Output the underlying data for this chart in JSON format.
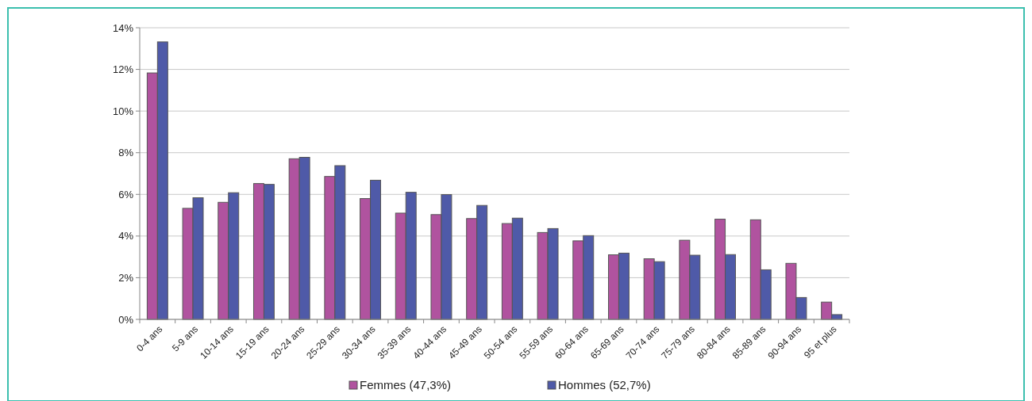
{
  "chart_data": {
    "type": "bar",
    "categories": [
      "0-4 ans",
      "5-9 ans",
      "10-14 ans",
      "15-19 ans",
      "20-24 ans",
      "25-29 ans",
      "30-34 ans",
      "35-39 ans",
      "40-44 ans",
      "45-49 ans",
      "50-54 ans",
      "55-59 ans",
      "60-64 ans",
      "65-69 ans",
      "70-74 ans",
      "75-79 ans",
      "80-84 ans",
      "85-89 ans",
      "90-94 ans",
      "95 et plus"
    ],
    "series": [
      {
        "name": "Femmes (47,3%)",
        "color": "#b0539f",
        "values": [
          11.83,
          5.33,
          5.62,
          6.52,
          7.71,
          6.86,
          5.8,
          5.1,
          5.03,
          4.84,
          4.6,
          4.17,
          3.77,
          3.1,
          2.91,
          3.8,
          4.81,
          4.78,
          2.69,
          0.83
        ]
      },
      {
        "name": "Hommes (52,7%)",
        "color": "#4f5aa8",
        "values": [
          13.32,
          5.84,
          6.08,
          6.48,
          7.78,
          7.38,
          6.68,
          6.1,
          5.99,
          5.47,
          4.86,
          4.36,
          4.02,
          3.18,
          2.77,
          3.08,
          3.11,
          2.38,
          1.05,
          0.23
        ]
      }
    ],
    "ylim": [
      0,
      14
    ],
    "yticks": [
      {
        "value": 0,
        "label": "0%"
      },
      {
        "value": 2,
        "label": "2%"
      },
      {
        "value": 4,
        "label": "4%"
      },
      {
        "value": 6,
        "label": "6%"
      },
      {
        "value": 8,
        "label": "8%"
      },
      {
        "value": 10,
        "label": "10%"
      },
      {
        "value": 12,
        "label": "12%"
      },
      {
        "value": 14,
        "label": "14%"
      }
    ],
    "grid": "y",
    "legend": "bottom"
  }
}
